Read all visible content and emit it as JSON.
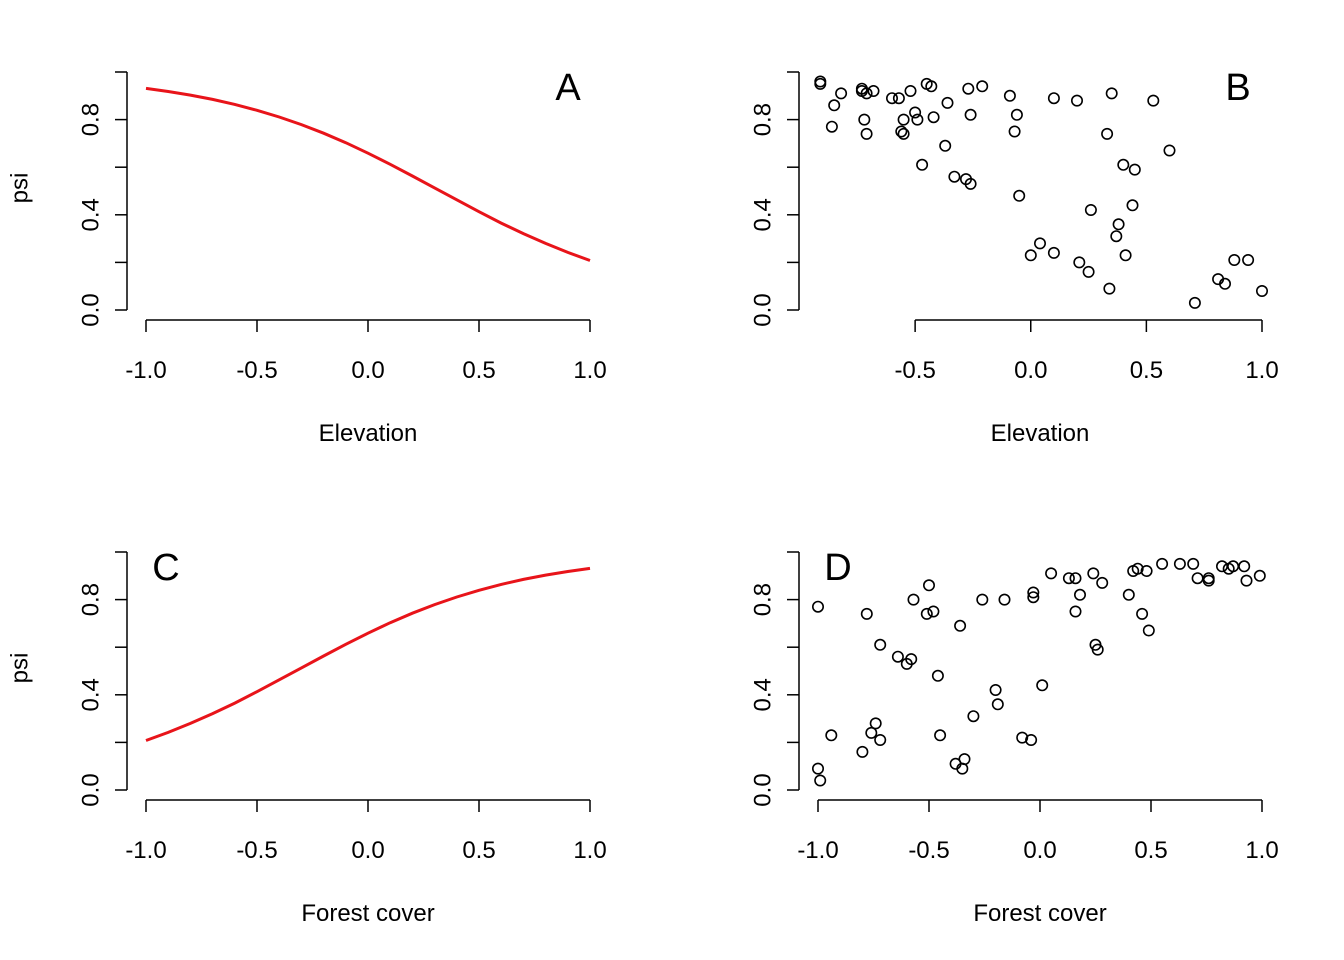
{
  "chart_data": [
    {
      "id": "A",
      "type": "line",
      "panel_label": "A",
      "xlabel": "Elevation",
      "ylabel": "psi",
      "xlim": [
        -1.0,
        1.0
      ],
      "ylim": [
        0.0,
        1.0
      ],
      "x_ticks": [
        -1.0,
        -0.5,
        0.0,
        0.5,
        1.0
      ],
      "x_tick_labels": [
        "-1.0",
        "-0.5",
        "0.0",
        "0.5",
        "1.0"
      ],
      "y_ticks": [
        0.0,
        0.2,
        0.4,
        0.6,
        0.8,
        1.0
      ],
      "y_tick_labels": [
        "0.0",
        "",
        "0.4",
        "",
        "0.8",
        ""
      ],
      "line_color": "#e8141a",
      "series": [
        {
          "x": [
            -1.0,
            -0.9,
            -0.8,
            -0.7,
            -0.6,
            -0.5,
            -0.4,
            -0.3,
            -0.2,
            -0.1,
            0.0,
            0.1,
            0.2,
            0.3,
            0.4,
            0.5,
            0.6,
            0.7,
            0.8,
            0.9,
            1.0
          ],
          "y": [
            0.931,
            0.918,
            0.903,
            0.885,
            0.864,
            0.839,
            0.811,
            0.779,
            0.743,
            0.703,
            0.659,
            0.612,
            0.563,
            0.513,
            0.463,
            0.413,
            0.365,
            0.321,
            0.28,
            0.242,
            0.208
          ]
        }
      ]
    },
    {
      "id": "B",
      "type": "scatter",
      "panel_label": "B",
      "xlabel": "Elevation",
      "ylabel": "",
      "xlim": [
        -0.92,
        1.0
      ],
      "ylim": [
        0.0,
        1.0
      ],
      "x_ticks": [
        -0.5,
        0.0,
        0.5,
        1.0
      ],
      "x_tick_labels": [
        "-0.5",
        "0.0",
        "0.5",
        "1.0"
      ],
      "y_ticks": [
        0.0,
        0.2,
        0.4,
        0.6,
        0.8,
        1.0
      ],
      "y_tick_labels": [
        "0.0",
        "",
        "0.4",
        "",
        "0.8",
        ""
      ],
      "series": [
        {
          "x": [
            -0.91,
            -0.91,
            -0.86,
            -0.85,
            -0.82,
            -0.73,
            -0.72,
            -0.71,
            -0.73,
            -0.71,
            -0.68,
            -0.6,
            -0.57,
            -0.56,
            -0.55,
            -0.55,
            -0.52,
            -0.5,
            -0.49,
            -0.47,
            -0.45,
            -0.43,
            -0.42,
            -0.37,
            -0.36,
            -0.33,
            -0.28,
            -0.27,
            -0.26,
            -0.26,
            -0.21,
            -0.09,
            -0.07,
            -0.06,
            -0.05,
            0.0,
            0.04,
            0.1,
            0.1,
            0.2,
            0.21,
            0.25,
            0.26,
            0.33,
            0.34,
            0.35,
            0.37,
            0.38,
            0.4,
            0.41,
            0.44,
            0.45,
            0.53,
            0.6,
            0.71,
            0.81,
            0.84,
            0.88,
            0.94,
            1.0
          ],
          "y": [
            0.96,
            0.95,
            0.77,
            0.86,
            0.91,
            0.93,
            0.8,
            0.74,
            0.92,
            0.91,
            0.92,
            0.89,
            0.89,
            0.75,
            0.74,
            0.8,
            0.92,
            0.83,
            0.8,
            0.61,
            0.95,
            0.94,
            0.81,
            0.69,
            0.87,
            0.56,
            0.55,
            0.93,
            0.82,
            0.53,
            0.94,
            0.9,
            0.75,
            0.82,
            0.48,
            0.23,
            0.28,
            0.24,
            0.89,
            0.88,
            0.2,
            0.16,
            0.42,
            0.74,
            0.09,
            0.91,
            0.31,
            0.36,
            0.61,
            0.23,
            0.44,
            0.59,
            0.88,
            0.67,
            0.03,
            0.13,
            0.11,
            0.21,
            0.21,
            0.08
          ]
        }
      ]
    },
    {
      "id": "C",
      "type": "line",
      "panel_label": "C",
      "xlabel": "Forest cover",
      "ylabel": "psi",
      "xlim": [
        -1.0,
        1.0
      ],
      "ylim": [
        0.0,
        1.0
      ],
      "x_ticks": [
        -1.0,
        -0.5,
        0.0,
        0.5,
        1.0
      ],
      "x_tick_labels": [
        "-1.0",
        "-0.5",
        "0.0",
        "0.5",
        "1.0"
      ],
      "y_ticks": [
        0.0,
        0.2,
        0.4,
        0.6,
        0.8,
        1.0
      ],
      "y_tick_labels": [
        "0.0",
        "",
        "0.4",
        "",
        "0.8",
        ""
      ],
      "line_color": "#e8141a",
      "series": [
        {
          "x": [
            -1.0,
            -0.9,
            -0.8,
            -0.7,
            -0.6,
            -0.5,
            -0.4,
            -0.3,
            -0.2,
            -0.1,
            0.0,
            0.1,
            0.2,
            0.3,
            0.4,
            0.5,
            0.6,
            0.7,
            0.8,
            0.9,
            1.0
          ],
          "y": [
            0.208,
            0.242,
            0.28,
            0.321,
            0.365,
            0.413,
            0.463,
            0.513,
            0.563,
            0.612,
            0.659,
            0.703,
            0.743,
            0.779,
            0.811,
            0.839,
            0.864,
            0.885,
            0.903,
            0.918,
            0.931
          ]
        }
      ]
    },
    {
      "id": "D",
      "type": "scatter",
      "panel_label": "D",
      "xlabel": "Forest cover",
      "ylabel": "",
      "xlim": [
        -1.0,
        1.0
      ],
      "ylim": [
        0.0,
        1.0
      ],
      "x_ticks": [
        -1.0,
        -0.5,
        0.0,
        0.5,
        1.0
      ],
      "x_tick_labels": [
        "-1.0",
        "-0.5",
        "0.0",
        "0.5",
        "1.0"
      ],
      "y_ticks": [
        0.0,
        0.2,
        0.4,
        0.6,
        0.8,
        1.0
      ],
      "y_tick_labels": [
        "0.0",
        "",
        "0.4",
        "",
        "0.8",
        ""
      ],
      "series": [
        {
          "x": [
            -1.0,
            -1.0,
            -0.99,
            -0.94,
            -0.8,
            -0.78,
            -0.76,
            -0.74,
            -0.72,
            -0.72,
            -0.64,
            -0.6,
            -0.58,
            -0.57,
            -0.51,
            -0.5,
            -0.48,
            -0.46,
            -0.45,
            -0.38,
            -0.36,
            -0.35,
            -0.34,
            -0.3,
            -0.26,
            -0.2,
            -0.19,
            -0.16,
            -0.08,
            -0.04,
            -0.03,
            -0.03,
            0.01,
            0.05,
            0.13,
            0.16,
            0.16,
            0.18,
            0.24,
            0.25,
            0.26,
            0.28,
            0.4,
            0.42,
            0.44,
            0.46,
            0.48,
            0.49,
            0.55,
            0.63,
            0.69,
            0.71,
            0.76,
            0.76,
            0.82,
            0.85,
            0.87,
            0.92,
            0.93,
            0.99
          ],
          "y": [
            0.77,
            0.09,
            0.04,
            0.23,
            0.16,
            0.74,
            0.24,
            0.28,
            0.21,
            0.61,
            0.56,
            0.53,
            0.55,
            0.8,
            0.74,
            0.86,
            0.75,
            0.48,
            0.23,
            0.11,
            0.69,
            0.09,
            0.13,
            0.31,
            0.8,
            0.42,
            0.36,
            0.8,
            0.22,
            0.21,
            0.81,
            0.83,
            0.44,
            0.91,
            0.89,
            0.75,
            0.89,
            0.82,
            0.91,
            0.61,
            0.59,
            0.87,
            0.82,
            0.92,
            0.93,
            0.74,
            0.92,
            0.67,
            0.95,
            0.95,
            0.95,
            0.89,
            0.88,
            0.89,
            0.94,
            0.93,
            0.94,
            0.94,
            0.88,
            0.9
          ]
        }
      ]
    }
  ]
}
